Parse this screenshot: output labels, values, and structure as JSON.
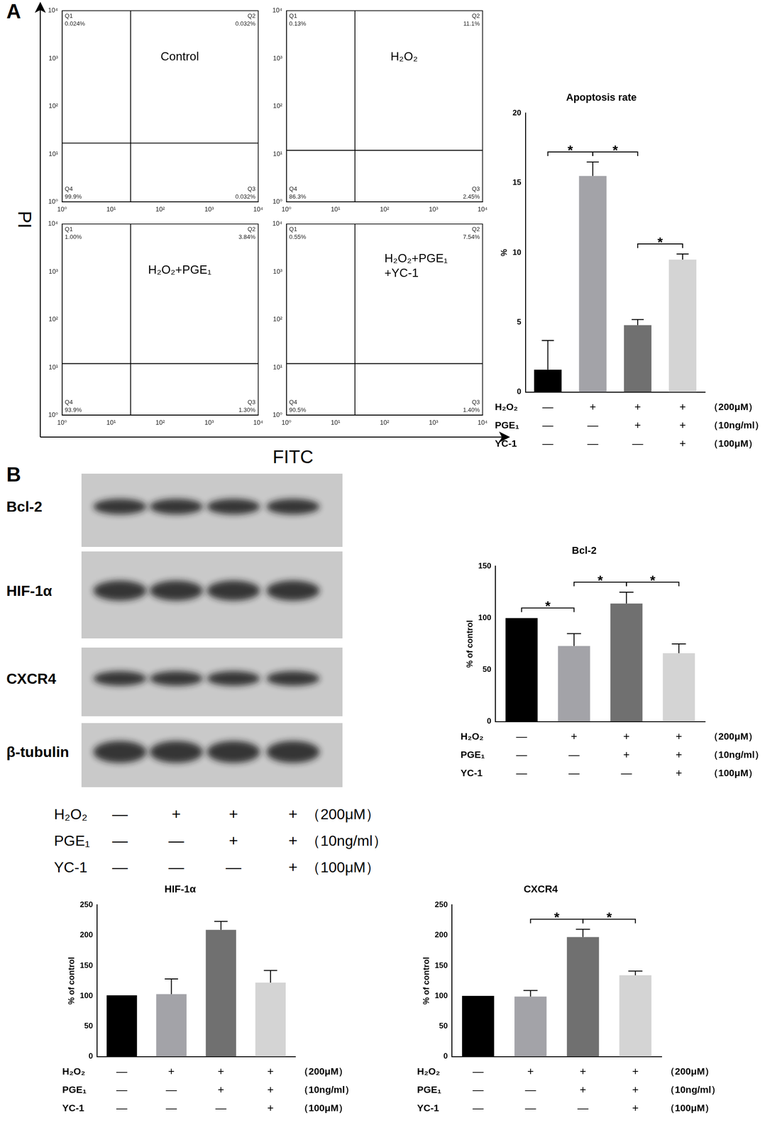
{
  "panel_labels": [
    "A",
    "B"
  ],
  "flow_axis_labels": {
    "x": "FITC",
    "y": "PI"
  },
  "conditions": [
    {
      "name": "H₂O₂",
      "marks": [
        "—",
        "+",
        "+",
        "+"
      ],
      "dose": "（200μM）"
    },
    {
      "name": "PGE₁",
      "marks": [
        "—",
        "—",
        "+",
        "+"
      ],
      "dose": "（10ng/ml）"
    },
    {
      "name": "YC-1",
      "marks": [
        "—",
        "—",
        "—",
        "+"
      ],
      "dose": "（100μM）"
    }
  ],
  "blot": {
    "rows": [
      "Bcl-2",
      "HIF-1α",
      "CXCR4",
      "β-tubulin"
    ]
  },
  "chart_data": [
    {
      "type": "scatter",
      "title": [
        "Control"
      ],
      "log": true,
      "grid": false,
      "xlim": [
        1,
        10000
      ],
      "ylim": [
        1,
        10000
      ],
      "xticks": [
        {
          "value": 1,
          "label": "10⁰"
        },
        {
          "value": 10,
          "label": "10¹"
        },
        {
          "value": 100,
          "label": "10²"
        },
        {
          "value": 1000,
          "label": "10³"
        },
        {
          "value": 10000,
          "label": "10⁴"
        }
      ],
      "yticks": [
        {
          "value": 1,
          "label": "10⁰"
        },
        {
          "value": 10,
          "label": "10¹"
        },
        {
          "value": 100,
          "label": "10²"
        },
        {
          "value": 1000,
          "label": "10³"
        },
        {
          "value": 10000,
          "label": "10⁴"
        }
      ],
      "gate": {
        "x": 25,
        "y": 17
      },
      "quadrants": [
        {
          "name": "Q1",
          "value": 0.024,
          "label": "0.024%"
        },
        {
          "name": "Q2",
          "value": 0.032,
          "label": "0.032%"
        },
        {
          "name": "Q3",
          "value": 0.032,
          "label": "0.032%"
        },
        {
          "name": "Q4",
          "value": 99.9,
          "label": "99.9%"
        }
      ]
    },
    {
      "type": "scatter",
      "title": [
        "H₂O₂"
      ],
      "log": true,
      "grid": false,
      "xlim": [
        1,
        10000
      ],
      "ylim": [
        1,
        10000
      ],
      "xticks": [
        {
          "value": 1,
          "label": "10⁰"
        },
        {
          "value": 10,
          "label": "10¹"
        },
        {
          "value": 100,
          "label": "10²"
        },
        {
          "value": 1000,
          "label": "10³"
        },
        {
          "value": 10000,
          "label": "10⁴"
        }
      ],
      "yticks": [
        {
          "value": 1,
          "label": "10⁰"
        },
        {
          "value": 10,
          "label": "10¹"
        },
        {
          "value": 100,
          "label": "10²"
        },
        {
          "value": 1000,
          "label": "10³"
        },
        {
          "value": 10000,
          "label": "10⁴"
        }
      ],
      "gate": {
        "x": 25,
        "y": 12
      },
      "quadrants": [
        {
          "name": "Q1",
          "value": 0.13,
          "label": "0.13%"
        },
        {
          "name": "Q2",
          "value": 11.1,
          "label": "11.1%"
        },
        {
          "name": "Q3",
          "value": 2.45,
          "label": "2.45%"
        },
        {
          "name": "Q4",
          "value": 86.3,
          "label": "86.3%"
        }
      ]
    },
    {
      "type": "scatter",
      "title": [
        "H₂O₂+PGE₁"
      ],
      "log": true,
      "grid": false,
      "xlim": [
        1,
        10000
      ],
      "ylim": [
        1,
        10000
      ],
      "xticks": [
        {
          "value": 1,
          "label": "10⁰"
        },
        {
          "value": 10,
          "label": "10¹"
        },
        {
          "value": 100,
          "label": "10²"
        },
        {
          "value": 1000,
          "label": "10³"
        },
        {
          "value": 10000,
          "label": "10⁴"
        }
      ],
      "yticks": [
        {
          "value": 1,
          "label": "10⁰"
        },
        {
          "value": 10,
          "label": "10¹"
        },
        {
          "value": 100,
          "label": "10²"
        },
        {
          "value": 1000,
          "label": "10³"
        },
        {
          "value": 10000,
          "label": "10⁴"
        }
      ],
      "gate": {
        "x": 25,
        "y": 12
      },
      "quadrants": [
        {
          "name": "Q1",
          "value": 1,
          "label": "1.00%"
        },
        {
          "name": "Q2",
          "value": 3.84,
          "label": "3.84%"
        },
        {
          "name": "Q3",
          "value": 1.3,
          "label": "1.30%"
        },
        {
          "name": "Q4",
          "value": 93.9,
          "label": "93.9%"
        }
      ]
    },
    {
      "type": "scatter",
      "title": [
        "H₂O₂+PGE₁",
        "+YC-1"
      ],
      "log": true,
      "grid": false,
      "xlim": [
        1,
        10000
      ],
      "ylim": [
        1,
        10000
      ],
      "xticks": [
        {
          "value": 1,
          "label": "10⁰"
        },
        {
          "value": 10,
          "label": "10¹"
        },
        {
          "value": 100,
          "label": "10²"
        },
        {
          "value": 1000,
          "label": "10³"
        },
        {
          "value": 10000,
          "label": "10⁴"
        }
      ],
      "yticks": [
        {
          "value": 1,
          "label": "10⁰"
        },
        {
          "value": 10,
          "label": "10¹"
        },
        {
          "value": 100,
          "label": "10²"
        },
        {
          "value": 1000,
          "label": "10³"
        },
        {
          "value": 10000,
          "label": "10⁴"
        }
      ],
      "gate": {
        "x": 25,
        "y": 12
      },
      "quadrants": [
        {
          "name": "Q1",
          "value": 0.55,
          "label": "0.55%"
        },
        {
          "name": "Q2",
          "value": 7.54,
          "label": "7.54%"
        },
        {
          "name": "Q3",
          "value": 1.4,
          "label": "1.40%"
        },
        {
          "name": "Q4",
          "value": 90.5,
          "label": "90.5%"
        }
      ]
    },
    {
      "type": "bar",
      "title": "Apoptosis rate",
      "y_label": "%",
      "grid": false,
      "categories": [
        null,
        null,
        null,
        null
      ],
      "values": [
        1.6,
        15.5,
        4.8,
        9.5
      ],
      "errors": [
        2.1,
        1.0,
        0.4,
        0.4
      ],
      "colors": [
        "#000000",
        "#a3a3a8",
        "#707070",
        "#d4d4d4"
      ],
      "ylim": [
        0,
        20
      ],
      "yticks": [
        0,
        5,
        10,
        15,
        20
      ],
      "significance": [
        {
          "from": 0,
          "to": 1,
          "label": "*"
        },
        {
          "from": 1,
          "to": 2,
          "label": "*"
        },
        {
          "from": 2,
          "to": 3,
          "label": "*"
        }
      ]
    },
    {
      "type": "bar",
      "title": "Bcl-2",
      "y_label": "% of control",
      "grid": false,
      "categories": [
        null,
        null,
        null,
        null
      ],
      "values": [
        100,
        73,
        114,
        66
      ],
      "errors": [
        0,
        12,
        11,
        9
      ],
      "colors": [
        "#000000",
        "#a3a3a8",
        "#707070",
        "#d4d4d4"
      ],
      "ylim": [
        0,
        150
      ],
      "yticks": [
        0,
        50,
        100,
        150
      ],
      "significance": [
        {
          "from": 0,
          "to": 1,
          "label": "*"
        },
        {
          "from": 1,
          "to": 2,
          "label": "*"
        },
        {
          "from": 2,
          "to": 3,
          "label": "*"
        }
      ]
    },
    {
      "type": "bar",
      "title": "HIF-1α",
      "y_label": "% of control",
      "grid": false,
      "categories": [
        null,
        null,
        null,
        null
      ],
      "values": [
        101,
        103,
        209,
        122
      ],
      "errors": [
        0,
        25,
        14,
        20
      ],
      "colors": [
        "#000000",
        "#a3a3a8",
        "#707070",
        "#d4d4d4"
      ],
      "ylim": [
        0,
        250
      ],
      "yticks": [
        0,
        50,
        100,
        150,
        200,
        250
      ],
      "significance": []
    },
    {
      "type": "bar",
      "title": "CXCR4",
      "y_label": "% of control",
      "grid": false,
      "categories": [
        null,
        null,
        null,
        null
      ],
      "values": [
        100,
        99,
        197,
        134
      ],
      "errors": [
        0,
        10,
        13,
        7
      ],
      "colors": [
        "#000000",
        "#a3a3a8",
        "#707070",
        "#d4d4d4"
      ],
      "ylim": [
        0,
        250
      ],
      "yticks": [
        0,
        50,
        100,
        150,
        200,
        250
      ],
      "significance": [
        {
          "from": 1,
          "to": 2,
          "label": "*"
        },
        {
          "from": 2,
          "to": 3,
          "label": "*"
        }
      ]
    }
  ]
}
